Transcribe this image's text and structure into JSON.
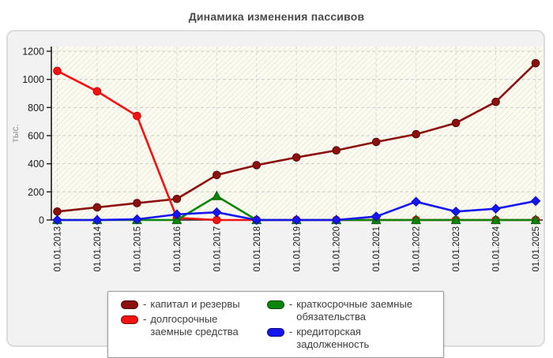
{
  "title": "Динамика изменения пассивов",
  "ylabel": "тыс.",
  "legend_dash": "-",
  "chart_data": {
    "type": "line",
    "title": "Динамика изменения пассивов",
    "ylabel": "тыс.",
    "xlabel": "",
    "grid": true,
    "legend_position": "bottom",
    "ylim": [
      0,
      1200
    ],
    "y_ticks": [
      0,
      200,
      400,
      600,
      800,
      1000,
      1200
    ],
    "categories": [
      "01.01.2013",
      "01.01.2014",
      "01.01.2015",
      "01.01.2016",
      "01.01.2017",
      "01.01.2018",
      "01.01.2019",
      "01.01.2020",
      "01.01.2021",
      "01.01.2022",
      "01.01.2023",
      "01.01.2024",
      "01.01.2025"
    ],
    "series": [
      {
        "name": "капитал и резервы",
        "color": "#8c1010",
        "edge": "#5c0808",
        "marker": "circle",
        "values": [
          60,
          90,
          120,
          150,
          320,
          390,
          445,
          495,
          555,
          610,
          690,
          840,
          1115
        ]
      },
      {
        "name": "долгосрочные заемные средства",
        "color": "#f51212",
        "edge": "#c40303",
        "marker": "circle",
        "values": [
          1060,
          915,
          740,
          15,
          0,
          0,
          0,
          0,
          0,
          0,
          0,
          0,
          0
        ]
      },
      {
        "name": "краткосрочные заемные обязательства",
        "color": "#0b860b",
        "edge": "#055c05",
        "marker": "triangle",
        "values": [
          0,
          0,
          0,
          0,
          170,
          0,
          0,
          0,
          0,
          0,
          0,
          0,
          0
        ]
      },
      {
        "name": "кредиторская задолженность",
        "color": "#1616f0",
        "edge": "#0b0bc0",
        "marker": "diamond",
        "values": [
          0,
          0,
          5,
          40,
          55,
          0,
          0,
          0,
          25,
          130,
          60,
          80,
          135
        ]
      }
    ]
  }
}
